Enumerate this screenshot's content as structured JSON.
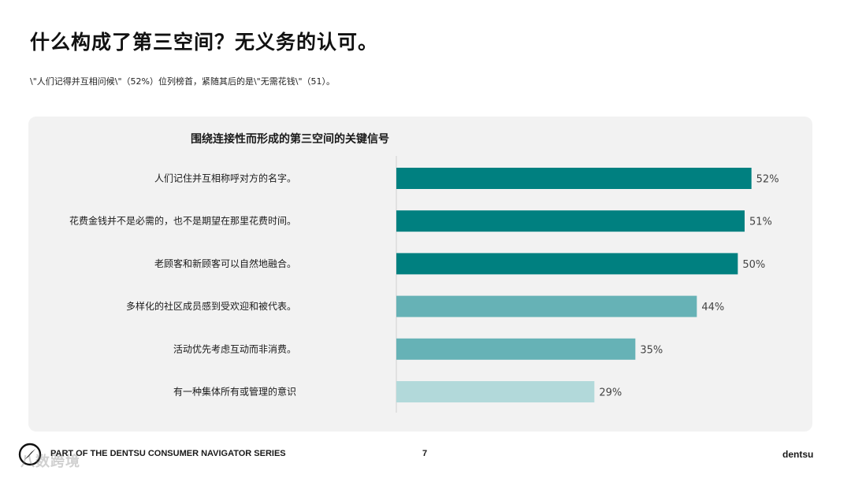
{
  "header": {
    "title": "什么构成了第三空间？无义务的认可。",
    "subtitle": "\\\"人们记得并互相问候\\\"（52%）位列榜首，紧随其后的是\\\"无需花钱\\\"（51）。"
  },
  "chart_data": {
    "type": "bar",
    "orientation": "horizontal",
    "title": "围绕连接性而形成的第三空间的关键信号",
    "categories": [
      "人们记住并互相称呼对方的名字。",
      "花费金钱并不是必需的，也不是期望在那里花费时间。",
      "老顾客和新顾客可以自然地融合。",
      "多样化的社区成员感到受欢迎和被代表。",
      "活动优先考虑互动而非消费。",
      "有一种集体所有或管理的意识"
    ],
    "values": [
      52,
      51,
      50,
      44,
      35,
      29
    ],
    "value_labels": [
      "52%",
      "51%",
      "50%",
      "44%",
      "35%",
      "29%"
    ],
    "unit": "%",
    "xlim": [
      0,
      60
    ],
    "grid": false,
    "colors": [
      "#008080",
      "#008080",
      "#008080",
      "#66b2b6",
      "#66b2b6",
      "#b2d9da"
    ]
  },
  "footer": {
    "series": "PART OF THE DENTSU CONSUMER NAVIGATOR SERIES",
    "page_number": "7",
    "brand": "dentsu",
    "watermark": "八数跨境"
  }
}
